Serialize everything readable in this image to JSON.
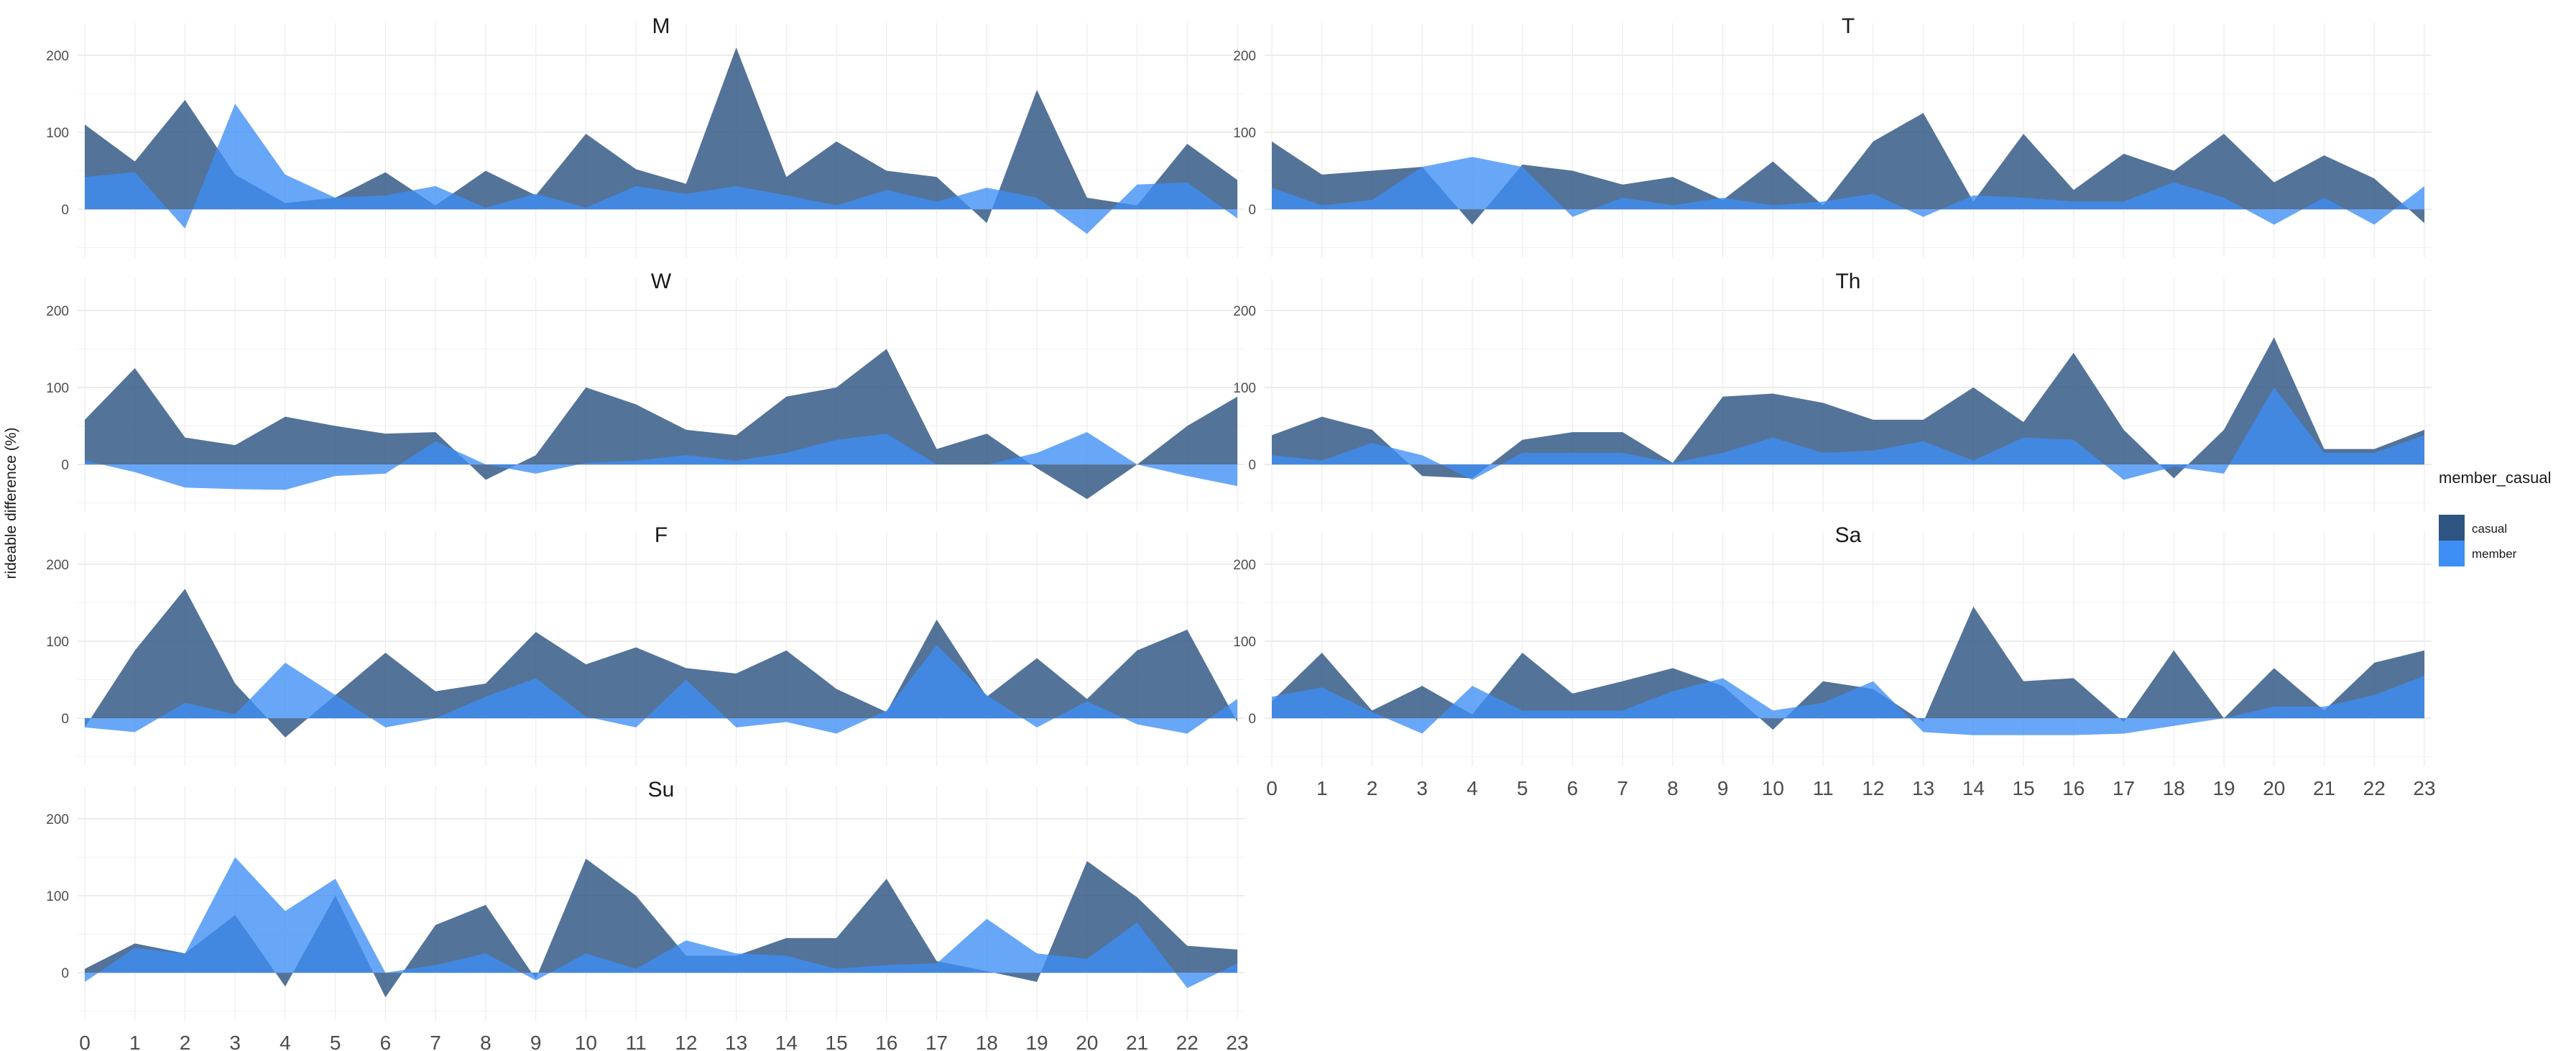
{
  "chart_data": {
    "type": "area",
    "ylabel": "rideable difference (%)",
    "xlabel": "",
    "x": [
      0,
      1,
      2,
      3,
      4,
      5,
      6,
      7,
      8,
      9,
      10,
      11,
      12,
      13,
      14,
      15,
      16,
      17,
      18,
      19,
      20,
      21,
      22,
      23
    ],
    "x_ticks": [
      "0",
      "1",
      "2",
      "3",
      "4",
      "5",
      "6",
      "7",
      "8",
      "9",
      "10",
      "11",
      "12",
      "13",
      "14",
      "15",
      "16",
      "17",
      "18",
      "19",
      "20",
      "21",
      "22",
      "23"
    ],
    "y_ticks": [
      "0",
      "100",
      "200"
    ],
    "ylim": [
      -55,
      225
    ],
    "grid": true,
    "legend": {
      "title": "member_casual",
      "placement": "right",
      "entries": [
        {
          "label": "casual",
          "color": "#2e5482"
        },
        {
          "label": "member",
          "color": "#3d8ef5"
        }
      ]
    },
    "panels": [
      {
        "title": "M",
        "series": [
          {
            "name": "casual",
            "values": [
              110,
              62,
              142,
              45,
              8,
              15,
              48,
              5,
              50,
              18,
              98,
              52,
              33,
              210,
              42,
              88,
              50,
              42,
              -18,
              155,
              15,
              5,
              85,
              38
            ]
          },
          {
            "name": "member",
            "values": [
              42,
              48,
              -25,
              137,
              45,
              15,
              18,
              30,
              2,
              20,
              2,
              30,
              20,
              30,
              18,
              5,
              25,
              10,
              28,
              15,
              -32,
              32,
              35,
              -12
            ]
          }
        ]
      },
      {
        "title": "T",
        "series": [
          {
            "name": "casual",
            "values": [
              88,
              45,
              50,
              55,
              -20,
              58,
              50,
              32,
              42,
              12,
              62,
              5,
              88,
              125,
              10,
              98,
              25,
              72,
              50,
              98,
              35,
              70,
              40,
              -18
            ]
          },
          {
            "name": "member",
            "values": [
              28,
              5,
              12,
              55,
              68,
              55,
              -10,
              15,
              5,
              15,
              5,
              10,
              20,
              -10,
              18,
              15,
              10,
              10,
              35,
              15,
              -20,
              15,
              -20,
              30
            ]
          }
        ]
      },
      {
        "title": "W",
        "series": [
          {
            "name": "casual",
            "values": [
              58,
              125,
              35,
              25,
              62,
              50,
              40,
              42,
              -20,
              12,
              100,
              78,
              45,
              38,
              88,
              100,
              150,
              20,
              40,
              -5,
              -45,
              0,
              50,
              88
            ]
          },
          {
            "name": "member",
            "values": [
              5,
              -10,
              -30,
              -32,
              -33,
              -15,
              -12,
              30,
              0,
              -12,
              2,
              5,
              12,
              5,
              15,
              32,
              40,
              0,
              0,
              15,
              42,
              0,
              -15,
              -28
            ]
          }
        ]
      },
      {
        "title": "Th",
        "series": [
          {
            "name": "casual",
            "values": [
              38,
              62,
              45,
              -15,
              -18,
              32,
              42,
              42,
              2,
              88,
              92,
              80,
              58,
              58,
              100,
              55,
              145,
              45,
              -18,
              45,
              165,
              20,
              20,
              45
            ]
          },
          {
            "name": "member",
            "values": [
              12,
              5,
              28,
              12,
              -20,
              15,
              15,
              15,
              2,
              15,
              35,
              15,
              18,
              30,
              5,
              35,
              32,
              -20,
              -3,
              -12,
              100,
              15,
              15,
              38
            ]
          }
        ]
      },
      {
        "title": "F",
        "series": [
          {
            "name": "casual",
            "values": [
              -12,
              88,
              168,
              45,
              -25,
              30,
              85,
              35,
              45,
              112,
              70,
              92,
              65,
              58,
              88,
              38,
              8,
              128,
              28,
              78,
              25,
              88,
              115,
              -5
            ]
          },
          {
            "name": "member",
            "values": [
              -12,
              -18,
              20,
              5,
              72,
              30,
              -12,
              0,
              28,
              52,
              2,
              -12,
              50,
              -12,
              -5,
              -20,
              10,
              95,
              30,
              -12,
              22,
              -8,
              -20,
              25
            ]
          }
        ]
      },
      {
        "title": "Sa",
        "series": [
          {
            "name": "casual",
            "values": [
              22,
              85,
              10,
              42,
              5,
              85,
              32,
              48,
              65,
              42,
              -15,
              48,
              38,
              -5,
              145,
              48,
              52,
              -5,
              88,
              0,
              65,
              10,
              72,
              88
            ]
          },
          {
            "name": "member",
            "values": [
              28,
              40,
              8,
              -20,
              42,
              10,
              10,
              10,
              35,
              52,
              10,
              20,
              48,
              -18,
              -22,
              -22,
              -22,
              -20,
              -10,
              0,
              15,
              15,
              30,
              55
            ]
          }
        ]
      },
      {
        "title": "Su",
        "series": [
          {
            "name": "casual",
            "values": [
              5,
              38,
              25,
              75,
              -18,
              100,
              -32,
              62,
              88,
              -8,
              148,
              100,
              22,
              22,
              45,
              45,
              122,
              15,
              2,
              -12,
              145,
              98,
              35,
              30
            ]
          },
          {
            "name": "member",
            "values": [
              -12,
              32,
              25,
              150,
              80,
              122,
              0,
              10,
              25,
              -10,
              25,
              5,
              42,
              25,
              22,
              5,
              10,
              12,
              70,
              25,
              18,
              65,
              -20,
              12
            ]
          }
        ]
      }
    ]
  }
}
